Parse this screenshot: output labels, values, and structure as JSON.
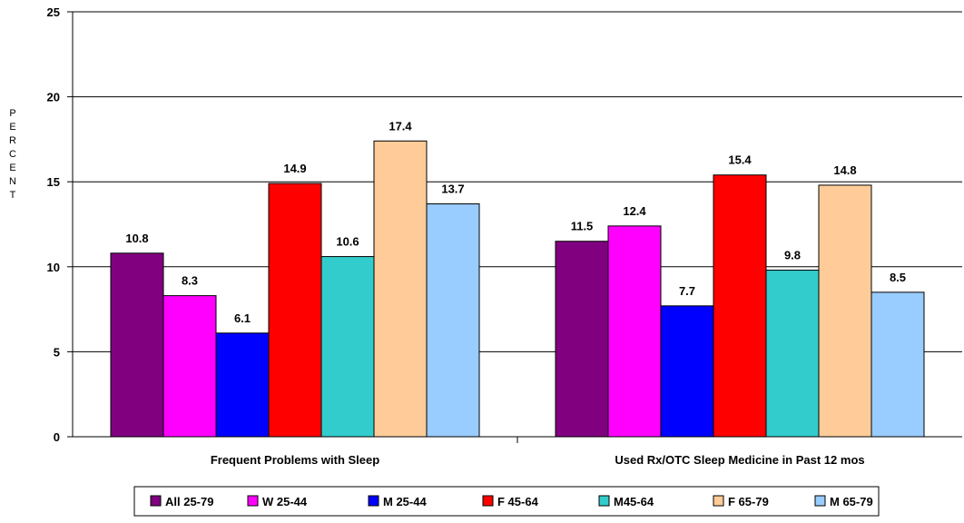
{
  "chart_data": {
    "type": "bar",
    "categories": [
      "Frequent Problems with Sleep",
      "Used Rx/OTC Sleep Medicine in Past 12 mos"
    ],
    "series": [
      {
        "name": "All 25-79",
        "color": "#800080",
        "values": [
          10.8,
          11.5
        ]
      },
      {
        "name": "W 25-44",
        "color": "#ff00ff",
        "values": [
          8.3,
          12.4
        ]
      },
      {
        "name": "M 25-44",
        "color": "#0000ff",
        "values": [
          6.1,
          7.7
        ]
      },
      {
        "name": "F 45-64",
        "color": "#ff0000",
        "values": [
          14.9,
          15.4
        ]
      },
      {
        "name": "M45-64",
        "color": "#33cccc",
        "values": [
          10.6,
          9.8
        ]
      },
      {
        "name": "F 65-79",
        "color": "#ffcc99",
        "values": [
          17.4,
          14.8
        ]
      },
      {
        "name": "M 65-79",
        "color": "#99ccff",
        "values": [
          13.7,
          8.5
        ]
      }
    ],
    "ylabel": "PERCENT",
    "xlabel": "",
    "title": "",
    "ylim": [
      0,
      25
    ],
    "yticks": [
      0,
      5,
      10,
      15,
      20,
      25
    ],
    "grid": true,
    "legend_position": "bottom",
    "data_labels": true
  }
}
